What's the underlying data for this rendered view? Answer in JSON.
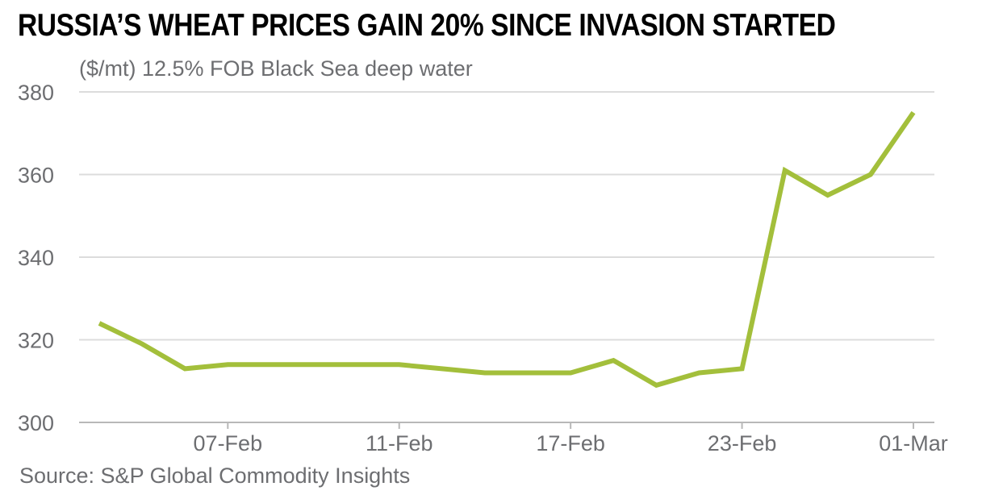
{
  "chart_data": {
    "type": "line",
    "title": "RUSSIA’S WHEAT PRICES GAIN 20% SINCE INVASION STARTED",
    "subtitle": "($/mt) 12.5% FOB Black Sea deep water",
    "source": "Source: S&P Global Commodity Insights",
    "xlabel": "",
    "ylabel": "",
    "ylim": [
      300,
      380
    ],
    "yticks": [
      300,
      320,
      340,
      360,
      380
    ],
    "x_tick_labels": [
      "07-Feb",
      "11-Feb",
      "17-Feb",
      "23-Feb",
      "01-Mar"
    ],
    "x": [
      "02-Feb",
      "03-Feb",
      "04-Feb",
      "07-Feb",
      "08-Feb",
      "09-Feb",
      "10-Feb",
      "11-Feb",
      "14-Feb",
      "15-Feb",
      "16-Feb",
      "17-Feb",
      "18-Feb",
      "21-Feb",
      "22-Feb",
      "23-Feb",
      "24-Feb",
      "25-Feb",
      "28-Feb",
      "01-Mar"
    ],
    "series": [
      {
        "color": "#a3bf3b",
        "values": [
          324,
          319,
          313,
          314,
          314,
          314,
          314,
          314,
          313,
          312,
          312,
          312,
          315,
          309,
          312,
          313,
          361,
          355,
          360,
          375
        ]
      }
    ],
    "grid": true,
    "legend": "none"
  }
}
